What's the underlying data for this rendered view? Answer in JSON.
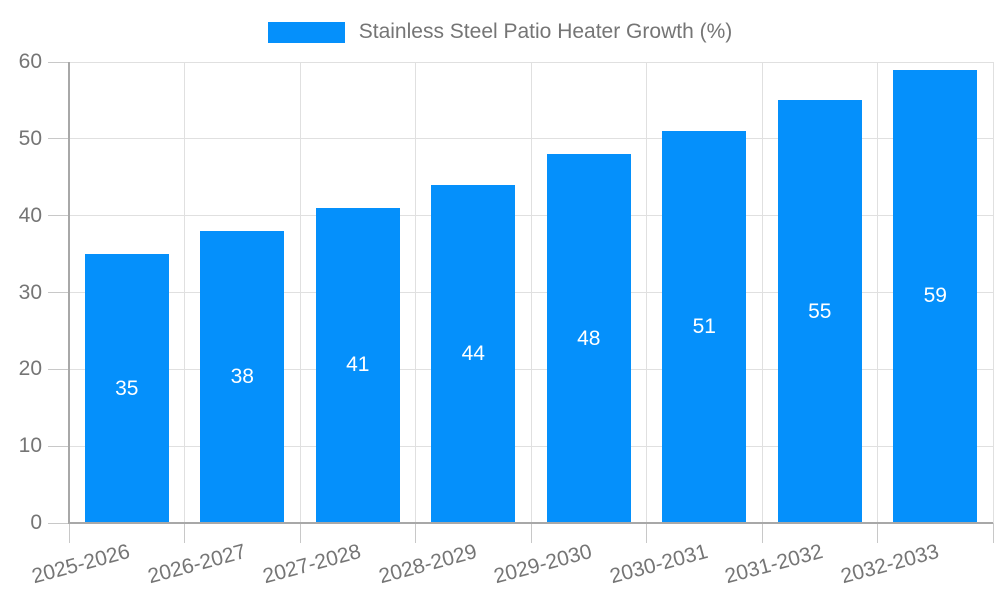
{
  "chart_data": {
    "type": "bar",
    "title": "",
    "legend": {
      "label": "Stainless Steel Patio Heater Growth (%)",
      "position": "top-center"
    },
    "categories": [
      "2025-2026",
      "2026-2027",
      "2027-2028",
      "2028-2029",
      "2029-2030",
      "2030-2031",
      "2031-2032",
      "2032-2033"
    ],
    "series": [
      {
        "name": "Stainless Steel Patio Heater Growth (%)",
        "values": [
          35,
          38,
          41,
          44,
          48,
          51,
          55,
          59
        ]
      }
    ],
    "value_labels": [
      "35",
      "38",
      "41",
      "44",
      "48",
      "51",
      "55",
      "59"
    ],
    "xlabel": "",
    "ylabel": "",
    "ylim": [
      0,
      60
    ],
    "y_ticks": [
      0,
      10,
      20,
      30,
      40,
      50,
      60
    ],
    "y_tick_labels": [
      "0",
      "10",
      "20",
      "30",
      "40",
      "50",
      "60"
    ],
    "grid": "on",
    "x_label_rotation_deg": -15,
    "colors": {
      "bar": "#0590FB",
      "value_label": "#FFFFFF",
      "axis_label": "#757575",
      "gridline": "#E0E0E0",
      "axis_line": "#A8A8A8",
      "tick": "#C8C8C8",
      "background": "#FFFFFF"
    }
  }
}
